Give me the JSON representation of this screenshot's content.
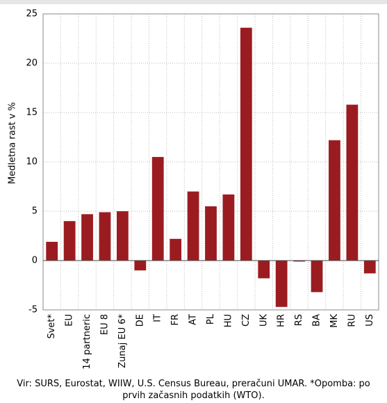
{
  "chart_data": {
    "type": "bar",
    "y_label": "Medletna rast v %",
    "categories": [
      "Svet*",
      "EU",
      "14 partneric",
      "EU 8",
      "Zunaj EU 6*",
      "DE",
      "IT",
      "FR",
      "AT",
      "PL",
      "HU",
      "CZ",
      "UK",
      "HR",
      "RS",
      "BA",
      "MK",
      "RU",
      "US"
    ],
    "values": [
      1.9,
      4.0,
      4.7,
      4.9,
      5.0,
      -1.0,
      10.5,
      2.2,
      7.0,
      5.5,
      6.7,
      23.6,
      -1.8,
      -4.7,
      -0.1,
      -3.2,
      12.2,
      15.8,
      -1.3
    ],
    "color": "#9b1c20",
    "ylim": [
      -5,
      25
    ],
    "yticks": [
      -5,
      0,
      5,
      10,
      15,
      20,
      25
    ],
    "grid": true,
    "source": "Vir: SURS, Eurostat, WIIW, U.S. Census Bureau, preračuni UMAR. *Opomba: po prvih začasnih podatkih (WTO)."
  }
}
